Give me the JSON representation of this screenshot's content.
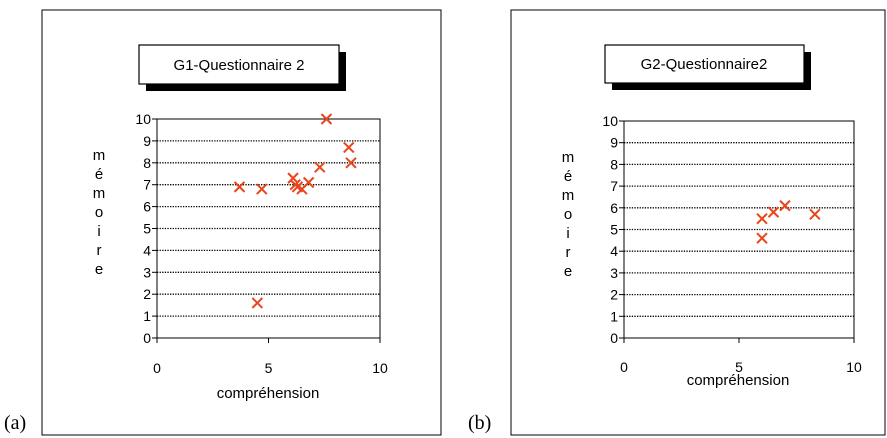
{
  "chart_data": [
    {
      "type": "scatter",
      "panel_label": "(a)",
      "title": "G1-Questionnaire 2",
      "xlabel": "compréhension",
      "ylabel": "mémoire",
      "xlim": [
        0,
        10
      ],
      "ylim": [
        0,
        10
      ],
      "xticks": [
        0,
        5,
        10
      ],
      "yticks": [
        0,
        1,
        2,
        3,
        4,
        5,
        6,
        7,
        8,
        9,
        10
      ],
      "grid": "horizontal dotted",
      "marker": "x",
      "marker_color": "#e8461c",
      "points": [
        {
          "x": 3.7,
          "y": 6.9
        },
        {
          "x": 4.7,
          "y": 6.8
        },
        {
          "x": 6.1,
          "y": 7.3
        },
        {
          "x": 6.2,
          "y": 7.0
        },
        {
          "x": 6.3,
          "y": 6.9
        },
        {
          "x": 6.5,
          "y": 6.8
        },
        {
          "x": 6.8,
          "y": 7.1
        },
        {
          "x": 7.3,
          "y": 7.8
        },
        {
          "x": 7.6,
          "y": 10.0
        },
        {
          "x": 8.6,
          "y": 8.7
        },
        {
          "x": 8.7,
          "y": 8.0
        },
        {
          "x": 4.5,
          "y": 1.6
        }
      ]
    },
    {
      "type": "scatter",
      "panel_label": "(b)",
      "title": "G2-Questionnaire2",
      "xlabel": "compréhension",
      "ylabel": "mémoire",
      "xlim": [
        0,
        10
      ],
      "ylim": [
        0,
        10
      ],
      "xticks": [
        0,
        5,
        10
      ],
      "yticks": [
        0,
        1,
        2,
        3,
        4,
        5,
        6,
        7,
        8,
        9,
        10
      ],
      "grid": "horizontal dotted",
      "marker": "x",
      "marker_color": "#e8461c",
      "points": [
        {
          "x": 6.0,
          "y": 4.6
        },
        {
          "x": 6.0,
          "y": 5.5
        },
        {
          "x": 6.5,
          "y": 5.8
        },
        {
          "x": 7.0,
          "y": 6.1
        },
        {
          "x": 8.3,
          "y": 5.7
        }
      ]
    }
  ]
}
